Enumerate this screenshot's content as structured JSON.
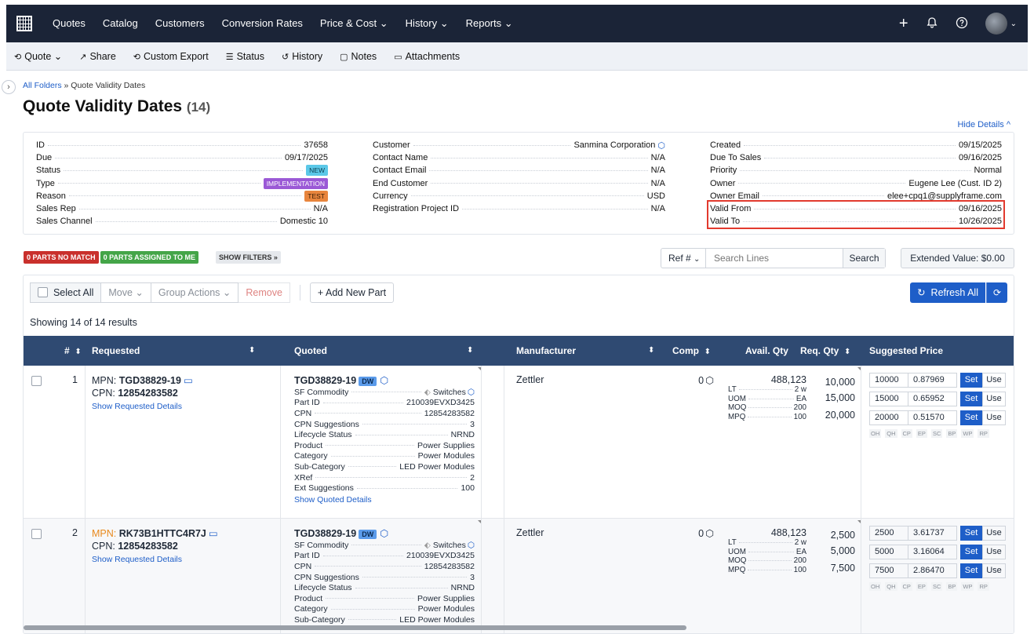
{
  "topnav": {
    "items": [
      "Quotes",
      "Catalog",
      "Customers",
      "Conversion Rates",
      "Price & Cost ⌄",
      "History ⌄",
      "Reports ⌄"
    ]
  },
  "toolbar": {
    "items": [
      "Quote ⌄",
      "Share",
      "Custom Export",
      "Status",
      "History",
      "Notes",
      "Attachments"
    ]
  },
  "breadcrumb": {
    "root": "All Folders",
    "sep": "»",
    "current": "Quote Validity Dates"
  },
  "page": {
    "title": "Quote Validity Dates",
    "count": "(14)",
    "hide_details": "Hide Details ^"
  },
  "details": {
    "col1": [
      {
        "k": "ID",
        "v": "37658"
      },
      {
        "k": "Due",
        "v": "09/17/2025"
      },
      {
        "k": "Status",
        "v": "NEW"
      },
      {
        "k": "Type",
        "v": "IMPLEMENTATION"
      },
      {
        "k": "Reason",
        "v": "TEST"
      },
      {
        "k": "Sales Rep",
        "v": "N/A"
      },
      {
        "k": "Sales Channel",
        "v": "Domestic 10"
      }
    ],
    "col2": [
      {
        "k": "Customer",
        "v": "Sanmina Corporation"
      },
      {
        "k": "Contact Name",
        "v": "N/A"
      },
      {
        "k": "Contact Email",
        "v": "N/A"
      },
      {
        "k": "End Customer",
        "v": "N/A"
      },
      {
        "k": "Currency",
        "v": "USD"
      },
      {
        "k": "Registration Project ID",
        "v": "N/A"
      }
    ],
    "col3": [
      {
        "k": "Created",
        "v": "09/15/2025"
      },
      {
        "k": "Due To Sales",
        "v": "09/16/2025"
      },
      {
        "k": "Priority",
        "v": "Normal"
      },
      {
        "k": "Owner",
        "v": "Eugene Lee (Cust. ID 2)"
      },
      {
        "k": "Owner Email",
        "v": "elee+cpq1@supplyframe.com"
      },
      {
        "k": "Valid From",
        "v": "09/16/2025"
      },
      {
        "k": "Valid To",
        "v": "10/26/2025"
      }
    ]
  },
  "filters": {
    "no_match": "0 PARTS NO MATCH",
    "assigned": "0 PARTS ASSIGNED TO ME",
    "show": "SHOW FILTERS »"
  },
  "search": {
    "ref": "Ref #",
    "placeholder": "Search Lines",
    "button": "Search"
  },
  "extended_value": "Extended Value: $0.00",
  "actions": {
    "select_all": "Select All",
    "move": "Move ⌄",
    "group": "Group Actions ⌄",
    "remove": "Remove",
    "add": "+ Add New Part",
    "refresh": "Refresh All"
  },
  "showing": "Showing 14 of 14 results",
  "columns": [
    "#",
    "Requested",
    "Quoted",
    "Manufacturer",
    "Comp",
    "Avail. Qty",
    "Req. Qty",
    "Suggested Price"
  ],
  "rows": [
    {
      "num": "1",
      "mpn_label": "MPN:",
      "mpn": "TGD38829-19",
      "cpn_label": "CPN:",
      "cpn": "12854283582",
      "show_req": "Show Requested Details",
      "quoted": "TGD38829-19",
      "dw": "DW",
      "qdetails": [
        [
          "SF Commodity",
          "Switches"
        ],
        [
          "Part ID",
          "210039EVXD3425"
        ],
        [
          "CPN",
          "12854283582"
        ],
        [
          "CPN Suggestions",
          "3"
        ],
        [
          "Lifecycle Status",
          "NRND"
        ],
        [
          "Product",
          "Power Supplies"
        ],
        [
          "Category",
          "Power Modules"
        ],
        [
          "Sub-Category",
          "LED Power Modules"
        ],
        [
          "XRef",
          "2"
        ],
        [
          "Ext Suggestions",
          "100"
        ]
      ],
      "show_quoted": "Show Quoted Details",
      "manufacturer": "Zettler",
      "comp": "0",
      "avail": "488,123",
      "avail_details": [
        [
          "LT",
          "2 w"
        ],
        [
          "UOM",
          "EA"
        ],
        [
          "MOQ",
          "200"
        ],
        [
          "MPQ",
          "100"
        ]
      ],
      "req": [
        "10,000",
        "15,000",
        "20,000"
      ],
      "prices": [
        [
          "10000",
          "0.87969"
        ],
        [
          "15000",
          "0.65952"
        ],
        [
          "20000",
          "0.51570"
        ]
      ]
    },
    {
      "num": "2",
      "mpn_label": "MPN:",
      "mpn": "RK73B1HTTC4R7J",
      "cpn_label": "CPN:",
      "cpn": "12854283582",
      "show_req": "Show Requested Details",
      "quoted": "TGD38829-19",
      "dw": "DW",
      "qdetails": [
        [
          "SF Commodity",
          "Switches"
        ],
        [
          "Part ID",
          "210039EVXD3425"
        ],
        [
          "CPN",
          "12854283582"
        ],
        [
          "CPN Suggestions",
          "3"
        ],
        [
          "Lifecycle Status",
          "NRND"
        ],
        [
          "Product",
          "Power Supplies"
        ],
        [
          "Category",
          "Power Modules"
        ],
        [
          "Sub-Category",
          "LED Power Modules"
        ]
      ],
      "show_quoted": "",
      "manufacturer": "Zettler",
      "comp": "0",
      "avail": "488,123",
      "avail_details": [
        [
          "LT",
          "2 w"
        ],
        [
          "UOM",
          "EA"
        ],
        [
          "MOQ",
          "200"
        ],
        [
          "MPQ",
          "100"
        ]
      ],
      "req": [
        "2,500",
        "5,000",
        "7,500"
      ],
      "prices": [
        [
          "2500",
          "3.61737"
        ],
        [
          "5000",
          "3.16064"
        ],
        [
          "7500",
          "2.86470"
        ]
      ]
    }
  ],
  "price_buttons": {
    "set": "Set",
    "use": "Use",
    "abbr": [
      "OH",
      "QH",
      "CP",
      "EP",
      "SC",
      "BP",
      "WP",
      "RP"
    ]
  },
  "colors": {
    "nav": "#1b2437",
    "header": "#2f4a72",
    "accent": "#1e5ec8",
    "highlight": "#e23a2e",
    "mpn_warn": "#e8891c"
  }
}
